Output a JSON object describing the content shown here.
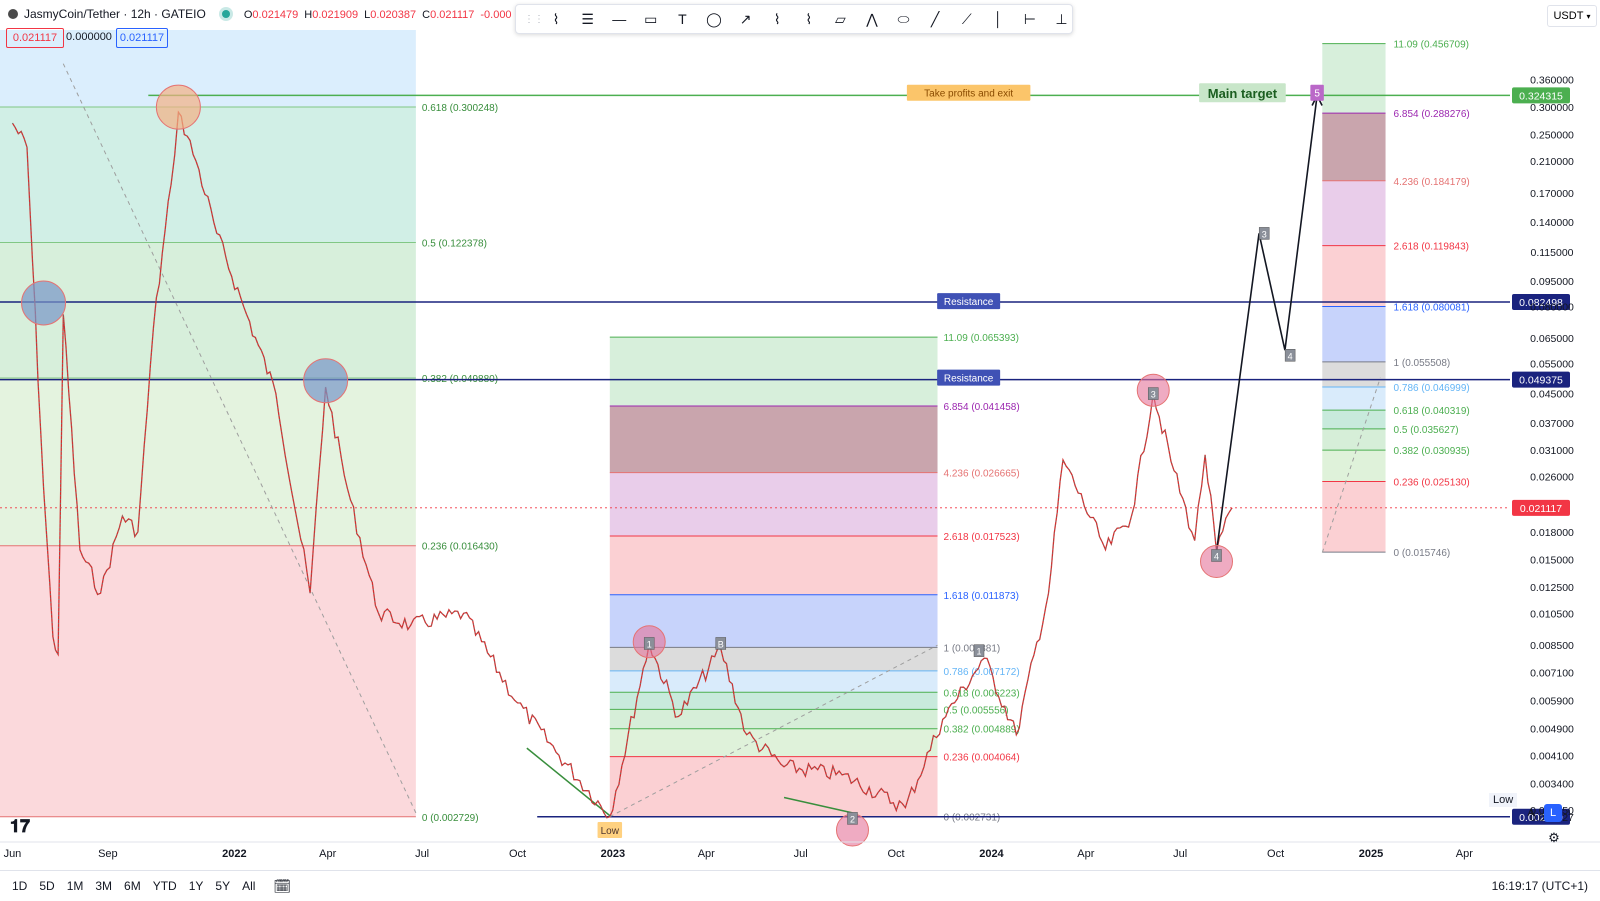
{
  "header": {
    "symbol": "JasmyCoin/Tether · 12h · GATEIO",
    "ohlc": [
      {
        "k": "O",
        "v": "0.021479"
      },
      {
        "k": "H",
        "v": "0.021909"
      },
      {
        "k": "L",
        "v": "0.020387"
      },
      {
        "k": "C",
        "v": "0.021117"
      },
      {
        "k": "",
        "v": "-0.000"
      }
    ],
    "sell_price": "0.021117",
    "spread": "0.000000",
    "buy_price": "0.021117"
  },
  "toolbar": {
    "tools": [
      "elliott-wave-icon",
      "parallel-lines-icon",
      "horizontal-ray-icon",
      "rectangle-icon",
      "text-icon",
      "ellipse-tool-icon",
      "path-arrow-icon",
      "wave-wxy-icon",
      "wave-abc-icon",
      "callout-icon",
      "elliott-triangle-icon",
      "rotated-rect-icon",
      "trend-line-icon",
      "polyline-icon",
      "vertical-line-icon",
      "price-range-icon",
      "anchor-line-icon"
    ]
  },
  "currency_selector": "USDT",
  "chart_data": {
    "type": "line",
    "title": "JasmyCoin/Tether · 12h · GATEIO",
    "y_scale": "log",
    "ylim": [
      0.0025,
      0.5
    ],
    "x_labels": [
      "Jun",
      "Sep",
      "2022",
      "Apr",
      "Jul",
      "Oct",
      "2023",
      "Apr",
      "Jul",
      "Oct",
      "2024",
      "Apr",
      "Jul",
      "Oct",
      "2025",
      "Apr"
    ],
    "y_ticks": [
      "0.360000",
      "0.300000",
      "0.250000",
      "0.210000",
      "0.170000",
      "0.140000",
      "0.115000",
      "0.095000",
      "0.080000",
      "0.065000",
      "0.055000",
      "0.045000",
      "0.037000",
      "0.031000",
      "0.026000",
      "0.018000",
      "0.015000",
      "0.012500",
      "0.010500",
      "0.008500",
      "0.007100",
      "0.005900",
      "0.004900",
      "0.004100",
      "0.003400",
      "0.002850",
      "0.002727"
    ],
    "price_path": [
      {
        "x": "2021-06-01",
        "y": 0.27
      },
      {
        "x": "2021-06-15",
        "y": 0.23
      },
      {
        "x": "2021-07-01",
        "y": 0.024
      },
      {
        "x": "2021-07-10",
        "y": 0.009
      },
      {
        "x": "2021-07-15",
        "y": 0.008
      },
      {
        "x": "2021-07-20",
        "y": 0.076
      },
      {
        "x": "2021-08-05",
        "y": 0.016
      },
      {
        "x": "2021-08-25",
        "y": 0.012
      },
      {
        "x": "2021-09-15",
        "y": 0.02
      },
      {
        "x": "2021-09-30",
        "y": 0.018
      },
      {
        "x": "2021-10-15",
        "y": 0.07
      },
      {
        "x": "2021-11-01",
        "y": 0.18
      },
      {
        "x": "2021-11-08",
        "y": 0.29
      },
      {
        "x": "2021-11-25",
        "y": 0.21
      },
      {
        "x": "2021-12-15",
        "y": 0.13
      },
      {
        "x": "2022-01-10",
        "y": 0.08
      },
      {
        "x": "2022-02-10",
        "y": 0.045
      },
      {
        "x": "2022-03-15",
        "y": 0.012
      },
      {
        "x": "2022-03-30",
        "y": 0.047
      },
      {
        "x": "2022-04-20",
        "y": 0.024
      },
      {
        "x": "2022-05-20",
        "y": 0.0105
      },
      {
        "x": "2022-06-20",
        "y": 0.0097
      },
      {
        "x": "2022-08-10",
        "y": 0.0105
      },
      {
        "x": "2022-10-01",
        "y": 0.0058
      },
      {
        "x": "2022-11-10",
        "y": 0.0041
      },
      {
        "x": "2022-12-29",
        "y": 0.00273
      },
      {
        "x": "2023-02-05",
        "y": 0.0086
      },
      {
        "x": "2023-03-05",
        "y": 0.0053
      },
      {
        "x": "2023-04-15",
        "y": 0.0083
      },
      {
        "x": "2023-05-10",
        "y": 0.0047
      },
      {
        "x": "2023-06-15",
        "y": 0.0038
      },
      {
        "x": "2023-08-10",
        "y": 0.0036
      },
      {
        "x": "2023-10-10",
        "y": 0.0029
      },
      {
        "x": "2023-11-15",
        "y": 0.0052
      },
      {
        "x": "2023-12-25",
        "y": 0.0078
      },
      {
        "x": "2024-01-25",
        "y": 0.0047
      },
      {
        "x": "2024-02-25",
        "y": 0.012
      },
      {
        "x": "2024-03-10",
        "y": 0.029
      },
      {
        "x": "2024-04-20",
        "y": 0.016
      },
      {
        "x": "2024-05-15",
        "y": 0.02
      },
      {
        "x": "2024-06-05",
        "y": 0.045
      },
      {
        "x": "2024-06-25",
        "y": 0.027
      },
      {
        "x": "2024-07-15",
        "y": 0.017
      },
      {
        "x": "2024-07-25",
        "y": 0.03
      },
      {
        "x": "2024-08-05",
        "y": 0.0158
      },
      {
        "x": "2024-08-20",
        "y": 0.021117
      }
    ],
    "projection_path": [
      {
        "x": "2024-08-05",
        "y": 0.0158
      },
      {
        "x": "2024-09-15",
        "y": 0.13
      },
      {
        "x": "2024-10-10",
        "y": 0.06
      },
      {
        "x": "2024-11-10",
        "y": 0.324
      }
    ],
    "price_lines": [
      {
        "price": 0.324315,
        "label": "0.324315",
        "color": "#4caf50"
      },
      {
        "price": 0.082498,
        "label": "0.082498",
        "color": "#1a237e"
      },
      {
        "price": 0.049375,
        "label": "0.049375",
        "color": "#1a237e"
      },
      {
        "price": 0.021117,
        "label": "0.021117",
        "color": "#f23645"
      },
      {
        "price": 0.002729,
        "label": "0.002729",
        "color": "#1a237e"
      }
    ],
    "fib_left": [
      {
        "label": "0.618 (0.300248)",
        "price": 0.300248
      },
      {
        "label": "0.5 (0.122378)",
        "price": 0.122378
      },
      {
        "label": "0.382 (0.049880)",
        "price": 0.04988
      },
      {
        "label": "0.236 (0.016430)",
        "price": 0.01643
      },
      {
        "label": "0 (0.002729)",
        "price": 0.002729
      }
    ],
    "fib_mid": [
      {
        "label": "11.09 (0.065393)",
        "price": 0.065393
      },
      {
        "label": "6.854 (0.041458)",
        "price": 0.041458
      },
      {
        "label": "4.236 (0.026665)",
        "price": 0.026665
      },
      {
        "label": "2.618 (0.017523)",
        "price": 0.017523
      },
      {
        "label": "1.618 (0.011873)",
        "price": 0.011873
      },
      {
        "label": "1 (0.008381)",
        "price": 0.008381
      },
      {
        "label": "0.786 (0.007172)",
        "price": 0.007172
      },
      {
        "label": "0.618 (0.006223)",
        "price": 0.006223
      },
      {
        "label": "0.5 (0.005556)",
        "price": 0.005556
      },
      {
        "label": "0.382 (0.004889)",
        "price": 0.004889
      },
      {
        "label": "0.236 (0.004064)",
        "price": 0.004064
      },
      {
        "label": "0 (0.002731)",
        "price": 0.002731
      }
    ],
    "fib_right": [
      {
        "label": "11.09 (0.456709)",
        "price": 0.456709
      },
      {
        "label": "6.854 (0.288276)",
        "price": 0.288276
      },
      {
        "label": "4.236 (0.184179)",
        "price": 0.184179
      },
      {
        "label": "2.618 (0.119843)",
        "price": 0.119843
      },
      {
        "label": "1.618 (0.080081)",
        "price": 0.080081
      },
      {
        "label": "1 (0.055508)",
        "price": 0.055508
      },
      {
        "label": "0.786 (0.046999)",
        "price": 0.046999
      },
      {
        "label": "0.618 (0.040319)",
        "price": 0.040319
      },
      {
        "label": "0.5 (0.035627)",
        "price": 0.035627
      },
      {
        "label": "0.382 (0.030935)",
        "price": 0.030935
      },
      {
        "label": "0.236 (0.025130)",
        "price": 0.02513
      },
      {
        "label": "0 (0.015746)",
        "price": 0.015746
      }
    ],
    "annotations": [
      {
        "text": "Take profits and exit",
        "x": "2023-12-10",
        "y": 0.33
      },
      {
        "text": "Main target",
        "x": "2024-08-30",
        "y": 0.33
      },
      {
        "text": "5",
        "x": "2024-11-10",
        "y": 0.33
      },
      {
        "text": "Resistance",
        "x": "2023-12-10",
        "y": 0.083
      },
      {
        "text": "Resistance",
        "x": "2023-12-10",
        "y": 0.05
      },
      {
        "text": "Low",
        "x": "2022-12-29",
        "y": 0.0025
      }
    ],
    "wave_labels": [
      {
        "text": "1",
        "x": "2023-02-05",
        "y": 0.0086
      },
      {
        "text": "B",
        "x": "2023-04-15",
        "y": 0.0086
      },
      {
        "text": "2",
        "x": "2023-08-20",
        "y": 0.0027
      },
      {
        "text": "1",
        "x": "2023-12-20",
        "y": 0.0082
      },
      {
        "text": "3",
        "x": "2024-06-05",
        "y": 0.045
      },
      {
        "text": "4",
        "x": "2024-08-05",
        "y": 0.0154
      },
      {
        "text": "3",
        "x": "2024-09-20",
        "y": 0.13
      },
      {
        "text": "4",
        "x": "2024-10-15",
        "y": 0.058
      }
    ]
  },
  "scale": {
    "low_label": "Low",
    "mode_a": "A",
    "mode_l": "L"
  },
  "bottom": {
    "ranges": [
      "1D",
      "5D",
      "1M",
      "3M",
      "6M",
      "YTD",
      "1Y",
      "5Y",
      "All"
    ],
    "clock": "16:19:17 (UTC+1)"
  }
}
